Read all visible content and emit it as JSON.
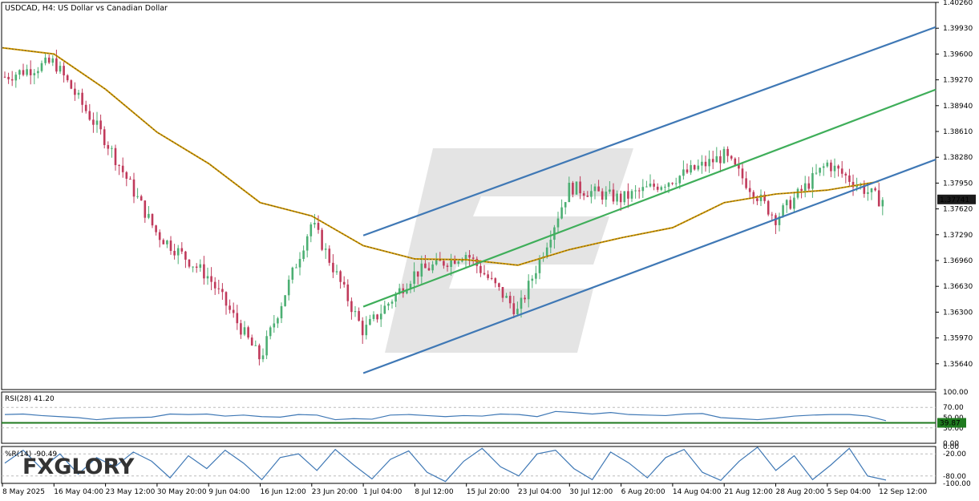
{
  "window": {
    "symbol": "USDCAD",
    "timeframe": "H4",
    "description": "US Dollar vs Canadian Dollar"
  },
  "watermark": {
    "brand": "FXGLORY"
  },
  "chart_data": [
    {
      "type": "candlestick",
      "title": "USDCAD, H4: US Dollar vs Canadian Dollar",
      "ylim": [
        1.3531,
        1.4026
      ],
      "y_ticks": [
        "1.40260",
        "1.39930",
        "1.39600",
        "1.39270",
        "1.38940",
        "1.38610",
        "1.38280",
        "1.37950",
        "1.37620",
        "1.37290",
        "1.36960",
        "1.36630",
        "1.36300",
        "1.35970",
        "1.35640"
      ],
      "x_ticks": [
        "8 May 2025",
        "16 May 04:00",
        "23 May 12:00",
        "30 May 20:00",
        "9 Jun 04:00",
        "16 Jun 12:00",
        "23 Jun 20:00",
        "1 Jul 04:00",
        "8 Jul 12:00",
        "15 Jul 20:00",
        "23 Jul 04:00",
        "30 Jul 12:00",
        "6 Aug 20:00",
        "14 Aug 04:00",
        "21 Aug 12:00",
        "28 Aug 20:00",
        "5 Sep 04:00",
        "12 Sep 12:00"
      ],
      "current_price": "1.37741",
      "colors": {
        "bull": "#4caf73",
        "bear": "#c03a5b",
        "ma": "#d39a00",
        "channel": "#3f78b5",
        "midline": "#3fae5a",
        "grid": "#c8c8c8",
        "price_tag": "#1b1b1b"
      },
      "moving_average": [
        {
          "x": "8 May 2025",
          "y": 1.3968
        },
        {
          "x": "16 May 04:00",
          "y": 1.396
        },
        {
          "x": "23 May 12:00",
          "y": 1.3915
        },
        {
          "x": "30 May 20:00",
          "y": 1.386
        },
        {
          "x": "9 Jun 04:00",
          "y": 1.382
        },
        {
          "x": "16 Jun 12:00",
          "y": 1.377
        },
        {
          "x": "23 Jun 20:00",
          "y": 1.3753
        },
        {
          "x": "1 Jul 04:00",
          "y": 1.3715
        },
        {
          "x": "8 Jul 12:00",
          "y": 1.3698
        },
        {
          "x": "15 Jul 20:00",
          "y": 1.3697
        },
        {
          "x": "23 Jul 04:00",
          "y": 1.369
        },
        {
          "x": "30 Jul 12:00",
          "y": 1.371
        },
        {
          "x": "6 Aug 20:00",
          "y": 1.3725
        },
        {
          "x": "14 Aug 04:00",
          "y": 1.3738
        },
        {
          "x": "21 Aug 12:00",
          "y": 1.377
        },
        {
          "x": "28 Aug 20:00",
          "y": 1.3781
        },
        {
          "x": "5 Sep 04:00",
          "y": 1.3786
        },
        {
          "x": "12 Sep 12:00",
          "y": 1.3797
        }
      ],
      "channel": {
        "upper": [
          {
            "x": "1 Jul 04:00",
            "y": 1.3728
          },
          {
            "x": "12 Sep 12:00",
            "y": 1.3968
          }
        ],
        "middle": [
          {
            "x": "1 Jul 04:00",
            "y": 1.3637
          },
          {
            "x": "12 Sep 12:00",
            "y": 1.3887
          }
        ],
        "lower": [
          {
            "x": "1 Jul 04:00",
            "y": 1.3552
          },
          {
            "x": "12 Sep 12:00",
            "y": 1.3798
          }
        ]
      },
      "close_path": [
        {
          "x": "8 May 2025",
          "y": 1.393
        },
        {
          "x": "16 May 04:00",
          "y": 1.395
        },
        {
          "x": "23 May 12:00",
          "y": 1.385
        },
        {
          "x": "30 May 20:00",
          "y": 1.373
        },
        {
          "x": "9 Jun 04:00",
          "y": 1.3675
        },
        {
          "x": "16 Jun 12:00",
          "y": 1.357
        },
        {
          "x": "23 Jun 20:00",
          "y": 1.3745
        },
        {
          "x": "1 Jul 04:00",
          "y": 1.3605
        },
        {
          "x": "8 Jul 12:00",
          "y": 1.368
        },
        {
          "x": "15 Jul 20:00",
          "y": 1.3705
        },
        {
          "x": "23 Jul 04:00",
          "y": 1.363
        },
        {
          "x": "30 Jul 12:00",
          "y": 1.379
        },
        {
          "x": "6 Aug 20:00",
          "y": 1.3775
        },
        {
          "x": "14 Aug 04:00",
          "y": 1.38
        },
        {
          "x": "21 Aug 12:00",
          "y": 1.383
        },
        {
          "x": "28 Aug 20:00",
          "y": 1.375
        },
        {
          "x": "5 Sep 04:00",
          "y": 1.382
        },
        {
          "x": "12 Sep 12:00",
          "y": 1.3774
        }
      ]
    },
    {
      "type": "line",
      "title": "RSI(28) 41.20",
      "ylim": [
        0,
        100
      ],
      "y_ticks": [
        "100.00",
        "70.00",
        "50.00",
        "30.00",
        "0.00"
      ],
      "level_label": "39.87",
      "level": 39.87,
      "values": [
        56,
        57,
        54,
        52,
        50,
        46,
        49,
        50,
        51,
        57,
        56,
        57,
        53,
        55,
        52,
        51,
        56,
        55,
        46,
        48,
        47,
        55,
        56,
        54,
        52,
        54,
        53,
        57,
        56,
        52,
        62,
        60,
        57,
        60,
        56,
        55,
        54,
        57,
        58,
        50,
        48,
        46,
        49,
        53,
        55,
        56,
        56,
        53,
        44
      ]
    },
    {
      "type": "line",
      "title": "%R(14) -90.49",
      "ylim": [
        -100,
        0
      ],
      "y_ticks": [
        "0.00",
        "-20.00",
        "-80.00",
        "-100.00"
      ],
      "values": [
        -45,
        -10,
        -60,
        -20,
        -75,
        -30,
        -55,
        -15,
        -40,
        -85,
        -25,
        -60,
        -10,
        -45,
        -90,
        -30,
        -20,
        -65,
        -8,
        -50,
        -88,
        -35,
        -12,
        -70,
        -95,
        -40,
        -5,
        -55,
        -80,
        -20,
        -10,
        -60,
        -90,
        -15,
        -45,
        -85,
        -30,
        -8,
        -70,
        -92,
        -40,
        -2,
        -65,
        -25,
        -90,
        -50,
        -5,
        -80,
        -91
      ]
    }
  ]
}
